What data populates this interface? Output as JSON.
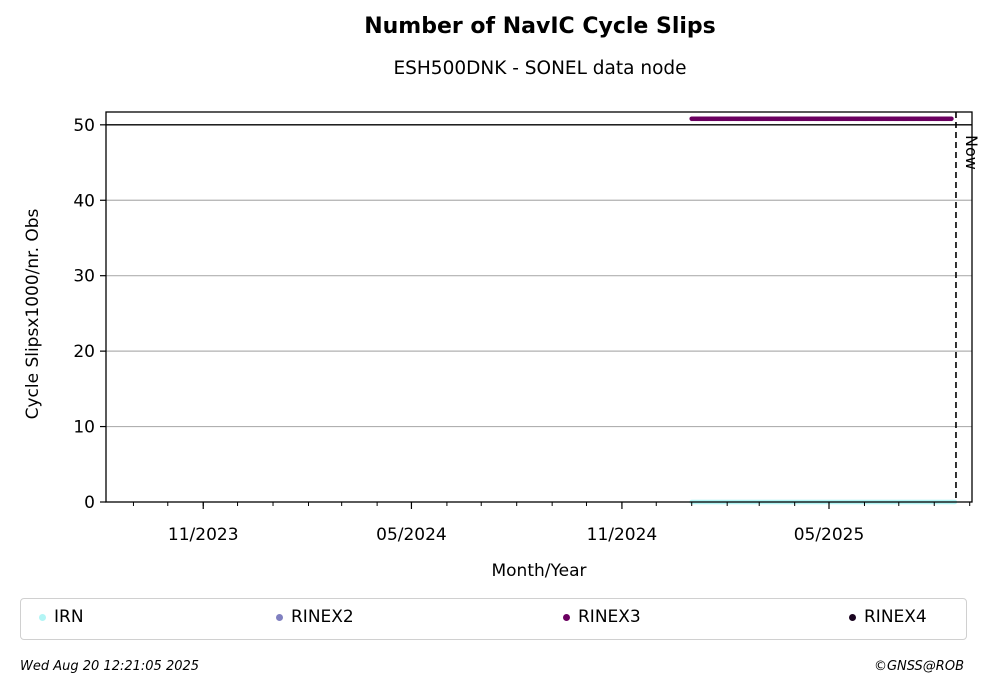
{
  "chart_data": {
    "type": "scatter",
    "title": "Number of NavIC Cycle Slips",
    "subtitle": "ESH500DNK - SONEL data node",
    "xlabel": "Month/Year",
    "ylabel": "Cycle Slipsx1000/nr. Obs",
    "ylim": [
      0,
      51.7
    ],
    "xlim": [
      "2023-08-08",
      "2025-09-03"
    ],
    "y_ticks": [
      0,
      10,
      20,
      30,
      40,
      50
    ],
    "x_ticks": [
      {
        "date": "2023-11-01",
        "label": "11/2023"
      },
      {
        "date": "2024-05-01",
        "label": "05/2024"
      },
      {
        "date": "2024-11-01",
        "label": "11/2024"
      },
      {
        "date": "2025-05-01",
        "label": "05/2025"
      }
    ],
    "grid": "y",
    "reference_line_y": 50,
    "now_line": {
      "date": "2025-08-20",
      "label": "Now"
    },
    "series": [
      {
        "name": "IRN",
        "color": "#b3f5f5",
        "x_range": [
          "2025-01-01",
          "2025-08-19"
        ],
        "y": 0
      },
      {
        "name": "RINEX2",
        "color": "#8080c0",
        "x_range": [],
        "y": null
      },
      {
        "name": "RINEX3",
        "color": "#6b0060",
        "x_range": [
          "2025-01-01",
          "2025-08-16"
        ],
        "y": 50.8
      },
      {
        "name": "RINEX4",
        "color": "#1a0520",
        "x_range": [],
        "y": null
      }
    ],
    "legend_position": "bottom"
  },
  "footer": {
    "timestamp": "Wed Aug 20 12:21:05 2025",
    "credit": "©GNSS@ROB"
  }
}
